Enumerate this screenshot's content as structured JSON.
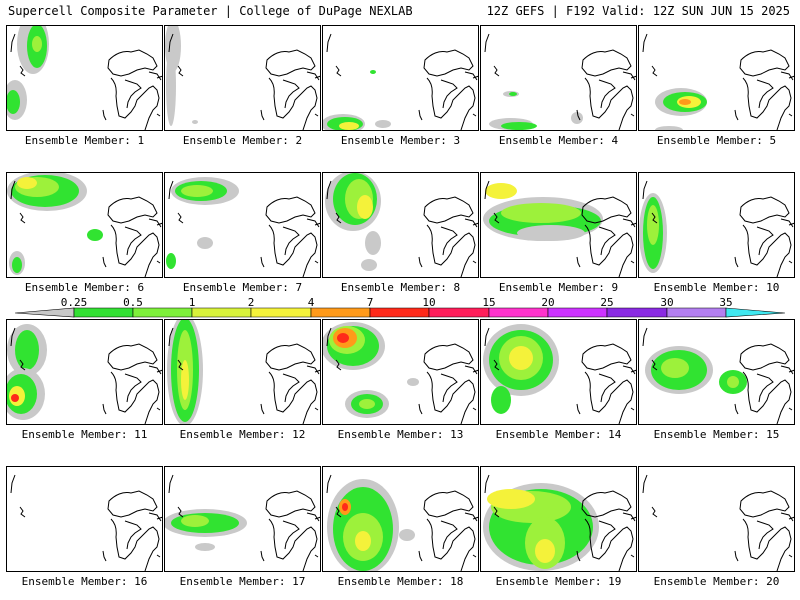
{
  "header": {
    "title_left": "Supercell Composite Parameter | College of DuPage NEXLAB",
    "title_right": "12Z GEFS | F192 Valid: 12Z SUN JUN 15 2025"
  },
  "colorbar": {
    "ticks": [
      "0.25",
      "0.5",
      "1",
      "2",
      "4",
      "7",
      "10",
      "15",
      "20",
      "25",
      "30",
      "35"
    ],
    "colors": [
      "#c8c8c8",
      "#33e033",
      "#7ef03a",
      "#d8f23a",
      "#f5f33a",
      "#ff9a1a",
      "#ff2a1a",
      "#ff1e5a",
      "#ff33cc",
      "#cc33ff",
      "#8a2be2",
      "#b37ff0",
      "#40e8f0"
    ]
  },
  "map_colors": {
    "gray": "#c9c9c9",
    "green": "#31e331",
    "lime": "#9df13b",
    "yellow": "#f4f23a",
    "orange": "#ff9a1a",
    "red": "#ff2a1a"
  },
  "panels": [
    {
      "label": "Ensemble Member: 1"
    },
    {
      "label": "Ensemble Member: 2"
    },
    {
      "label": "Ensemble Member: 3"
    },
    {
      "label": "Ensemble Member: 4"
    },
    {
      "label": "Ensemble Member: 5"
    },
    {
      "label": "Ensemble Member: 6"
    },
    {
      "label": "Ensemble Member: 7"
    },
    {
      "label": "Ensemble Member: 8"
    },
    {
      "label": "Ensemble Member: 9"
    },
    {
      "label": "Ensemble Member: 10"
    },
    {
      "label": "Ensemble Member: 11"
    },
    {
      "label": "Ensemble Member: 12"
    },
    {
      "label": "Ensemble Member: 13"
    },
    {
      "label": "Ensemble Member: 14"
    },
    {
      "label": "Ensemble Member: 15"
    },
    {
      "label": "Ensemble Member: 16"
    },
    {
      "label": "Ensemble Member: 17"
    },
    {
      "label": "Ensemble Member: 18"
    },
    {
      "label": "Ensemble Member: 19"
    },
    {
      "label": "Ensemble Member: 20"
    }
  ]
}
